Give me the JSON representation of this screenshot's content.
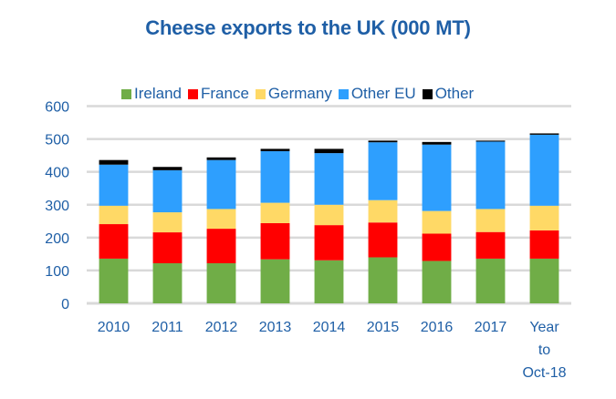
{
  "chart_data": {
    "type": "bar",
    "stacked": true,
    "title": "Cheese exports to the UK (000 MT)",
    "xlabel": "",
    "ylabel": "",
    "ylim": [
      0,
      600
    ],
    "yticks": [
      0,
      100,
      200,
      300,
      400,
      500,
      600
    ],
    "grid": true,
    "legend_position": "top",
    "categories": [
      "2010",
      "2011",
      "2012",
      "2013",
      "2014",
      "2015",
      "2016",
      "2017",
      "Year to Oct-18"
    ],
    "category_label_lines": [
      [
        "2010"
      ],
      [
        "2011"
      ],
      [
        "2012"
      ],
      [
        "2013"
      ],
      [
        "2014"
      ],
      [
        "2015"
      ],
      [
        "2016"
      ],
      [
        "2017"
      ],
      [
        "Year",
        "to",
        "Oct-18"
      ]
    ],
    "series": [
      {
        "name": "Ireland",
        "color": "#70ad47",
        "values": [
          136,
          122,
          122,
          134,
          131,
          140,
          129,
          136,
          136
        ]
      },
      {
        "name": "France",
        "color": "#ff0000",
        "values": [
          105,
          94,
          105,
          110,
          107,
          106,
          83,
          81,
          86
        ]
      },
      {
        "name": "Germany",
        "color": "#ffd966",
        "values": [
          56,
          61,
          60,
          62,
          62,
          68,
          69,
          70,
          75
        ]
      },
      {
        "name": "Other EU",
        "color": "#2e9ffe",
        "values": [
          125,
          128,
          149,
          157,
          157,
          176,
          202,
          205,
          216
        ]
      },
      {
        "name": "Other",
        "color": "#000000",
        "values": [
          14,
          10,
          8,
          7,
          13,
          5,
          8,
          3,
          4
        ]
      }
    ]
  }
}
